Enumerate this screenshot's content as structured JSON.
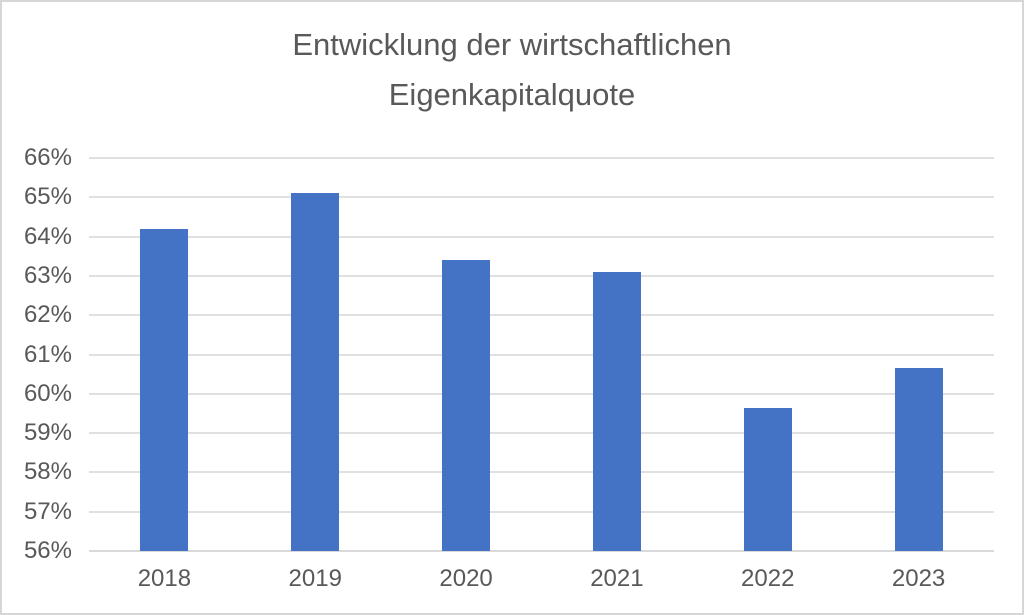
{
  "window": {
    "background": "#ffffff",
    "border_color": "#d6d6d6"
  },
  "chart_data": {
    "type": "bar",
    "title": "Entwicklung der wirtschaftlichen Eigenkapitalquote",
    "title_lines": [
      "Entwicklung der wirtschaftlichen",
      "Eigenkapitalquote"
    ],
    "categories": [
      "2018",
      "2019",
      "2020",
      "2021",
      "2022",
      "2023"
    ],
    "values": [
      64.2,
      65.1,
      63.4,
      63.1,
      59.65,
      60.65
    ],
    "xlabel": "",
    "ylabel": "",
    "ylim": [
      56,
      66
    ],
    "ytick_step": 1,
    "ytick_labels": [
      "56%",
      "57%",
      "58%",
      "59%",
      "60%",
      "61%",
      "62%",
      "63%",
      "64%",
      "65%",
      "66%"
    ],
    "grid": true,
    "legend": false,
    "colors": {
      "bar": "#4472c4",
      "gridline": "#e0e0e0",
      "axis_line": "#d9d9d9",
      "text": "#595959"
    }
  }
}
